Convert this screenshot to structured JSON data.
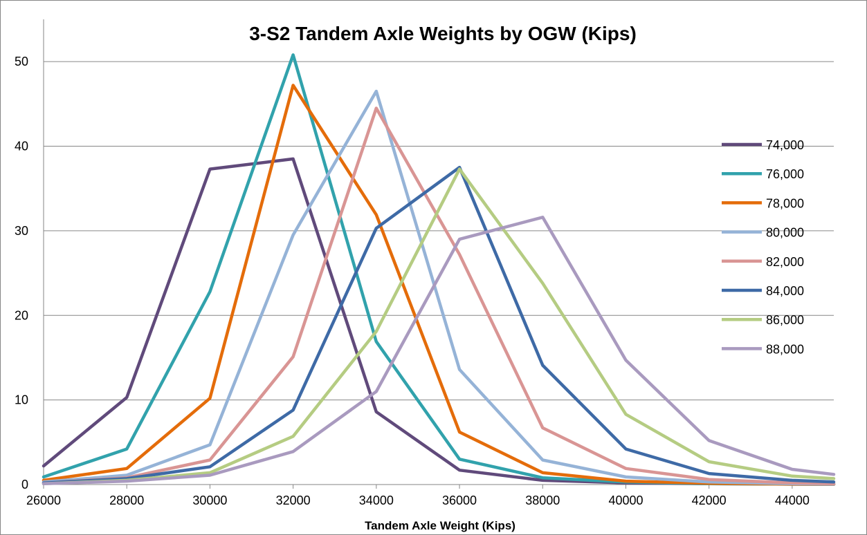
{
  "chart_data": {
    "type": "line",
    "title": "3-S2 Tandem Axle Weights by OGW (Kips)",
    "xlabel": "Tandem Axle Weight (Kips)",
    "ylabel": "",
    "xlim": [
      26000,
      45000
    ],
    "ylim": [
      0,
      55
    ],
    "x_ticks": [
      "26000",
      "28000",
      "30000",
      "32000",
      "34000",
      "36000",
      "38000",
      "40000",
      "42000",
      "44000"
    ],
    "y_ticks": [
      "0",
      "10",
      "20",
      "30",
      "40",
      "50"
    ],
    "grid": "horizontal",
    "legend_position": "right",
    "x": [
      26000,
      28000,
      30000,
      32000,
      34000,
      36000,
      38000,
      40000,
      42000,
      44000,
      45000
    ],
    "series": [
      {
        "name": "74,000",
        "color": "#604A7B",
        "values": [
          2.2,
          10.3,
          37.3,
          38.5,
          8.6,
          1.7,
          0.5,
          0.2,
          0.1,
          0.05,
          0.03
        ]
      },
      {
        "name": "76,000",
        "color": "#31A2AC",
        "values": [
          0.9,
          4.2,
          22.8,
          50.8,
          16.9,
          3.0,
          0.8,
          0.3,
          0.1,
          0.05,
          0.03
        ]
      },
      {
        "name": "78,000",
        "color": "#E46C0A",
        "values": [
          0.5,
          1.9,
          10.2,
          47.2,
          31.9,
          6.2,
          1.4,
          0.4,
          0.15,
          0.05,
          0.03
        ]
      },
      {
        "name": "80,000",
        "color": "#95B3D7",
        "values": [
          0.3,
          1.1,
          4.7,
          29.5,
          46.5,
          13.6,
          2.9,
          0.9,
          0.3,
          0.1,
          0.05
        ]
      },
      {
        "name": "82,000",
        "color": "#D99594",
        "values": [
          0.2,
          0.8,
          2.9,
          15.1,
          44.5,
          27.2,
          6.7,
          1.9,
          0.6,
          0.2,
          0.1
        ]
      },
      {
        "name": "84,000",
        "color": "#3E6AA6",
        "values": [
          0.2,
          0.7,
          2.1,
          8.8,
          30.3,
          37.5,
          14.1,
          4.2,
          1.3,
          0.5,
          0.3
        ]
      },
      {
        "name": "86,000",
        "color": "#B5CC82",
        "values": [
          0.1,
          0.5,
          1.4,
          5.7,
          18.1,
          37.3,
          23.8,
          8.3,
          2.7,
          1.0,
          0.7
        ]
      },
      {
        "name": "88,000",
        "color": "#A99ABF",
        "values": [
          0.1,
          0.4,
          1.1,
          3.9,
          11.0,
          29.0,
          31.6,
          14.7,
          5.2,
          1.8,
          1.2
        ]
      }
    ]
  }
}
